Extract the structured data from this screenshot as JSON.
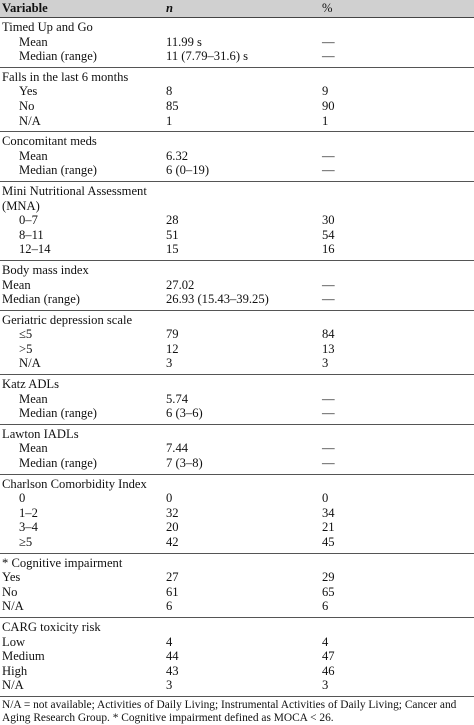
{
  "header": {
    "variable": "Variable",
    "n": "n",
    "pct": "%"
  },
  "sections": [
    {
      "title": "Timed Up and Go",
      "indent": true,
      "rows": [
        [
          "Mean",
          "11.99 s",
          "—"
        ],
        [
          "Median (range)",
          "11 (7.79–31.6) s",
          "—"
        ]
      ]
    },
    {
      "title": "Falls in the last 6 months",
      "indent": true,
      "rows": [
        [
          "Yes",
          "8",
          "9"
        ],
        [
          "No",
          "85",
          "90"
        ],
        [
          "N/A",
          "1",
          "1"
        ]
      ]
    },
    {
      "title": "Concomitant meds",
      "indent": true,
      "rows": [
        [
          "Mean",
          "6.32",
          "—"
        ],
        [
          "Median (range)",
          "6 (0–19)",
          "—"
        ]
      ]
    },
    {
      "title": "Mini Nutritional Assessment",
      "title2": "(MNA)",
      "indent": true,
      "rows": [
        [
          "0–7",
          "28",
          "30"
        ],
        [
          "8–11",
          "51",
          "54"
        ],
        [
          "12–14",
          "15",
          "16"
        ]
      ]
    },
    {
      "title": "Body mass index",
      "indent": false,
      "rows": [
        [
          "Mean",
          "27.02",
          "—"
        ],
        [
          "Median (range)",
          "26.93 (15.43–39.25)",
          "—"
        ]
      ]
    },
    {
      "title": "Geriatric depression scale",
      "indent": true,
      "rows": [
        [
          "≤5",
          "79",
          "84"
        ],
        [
          ">5",
          "12",
          "13"
        ],
        [
          "N/A",
          "3",
          "3"
        ]
      ]
    },
    {
      "title": "Katz ADLs",
      "indent": true,
      "rows": [
        [
          "Mean",
          "5.74",
          "—"
        ],
        [
          "Median (range)",
          "6 (3–6)",
          "—"
        ]
      ]
    },
    {
      "title": "Lawton IADLs",
      "indent": true,
      "rows": [
        [
          "Mean",
          "7.44",
          "—"
        ],
        [
          "Median (range)",
          "7 (3–8)",
          "—"
        ]
      ]
    },
    {
      "title": "Charlson Comorbidity Index",
      "indent": true,
      "rows": [
        [
          "0",
          "0",
          "0"
        ],
        [
          "1–2",
          "32",
          "34"
        ],
        [
          "3–4",
          "20",
          "21"
        ],
        [
          "≥5",
          "42",
          "45"
        ]
      ]
    },
    {
      "title": "* Cognitive impairment",
      "indent": false,
      "rows": [
        [
          "Yes",
          "27",
          "29"
        ],
        [
          "No",
          "61",
          "65"
        ],
        [
          "N/A",
          "6",
          "6"
        ]
      ]
    },
    {
      "title": "CARG toxicity risk",
      "indent": false,
      "rows": [
        [
          "Low",
          "4",
          "4"
        ],
        [
          "Medium",
          "44",
          "47"
        ],
        [
          "High",
          "43",
          "46"
        ],
        [
          "N/A",
          "3",
          "3"
        ]
      ]
    }
  ],
  "footnote": "N/A = not available; Activities of Daily Living; Instrumental Activities of Daily Living; Cancer and Aging Research Group. * Cognitive impairment defined as MOCA < 26."
}
